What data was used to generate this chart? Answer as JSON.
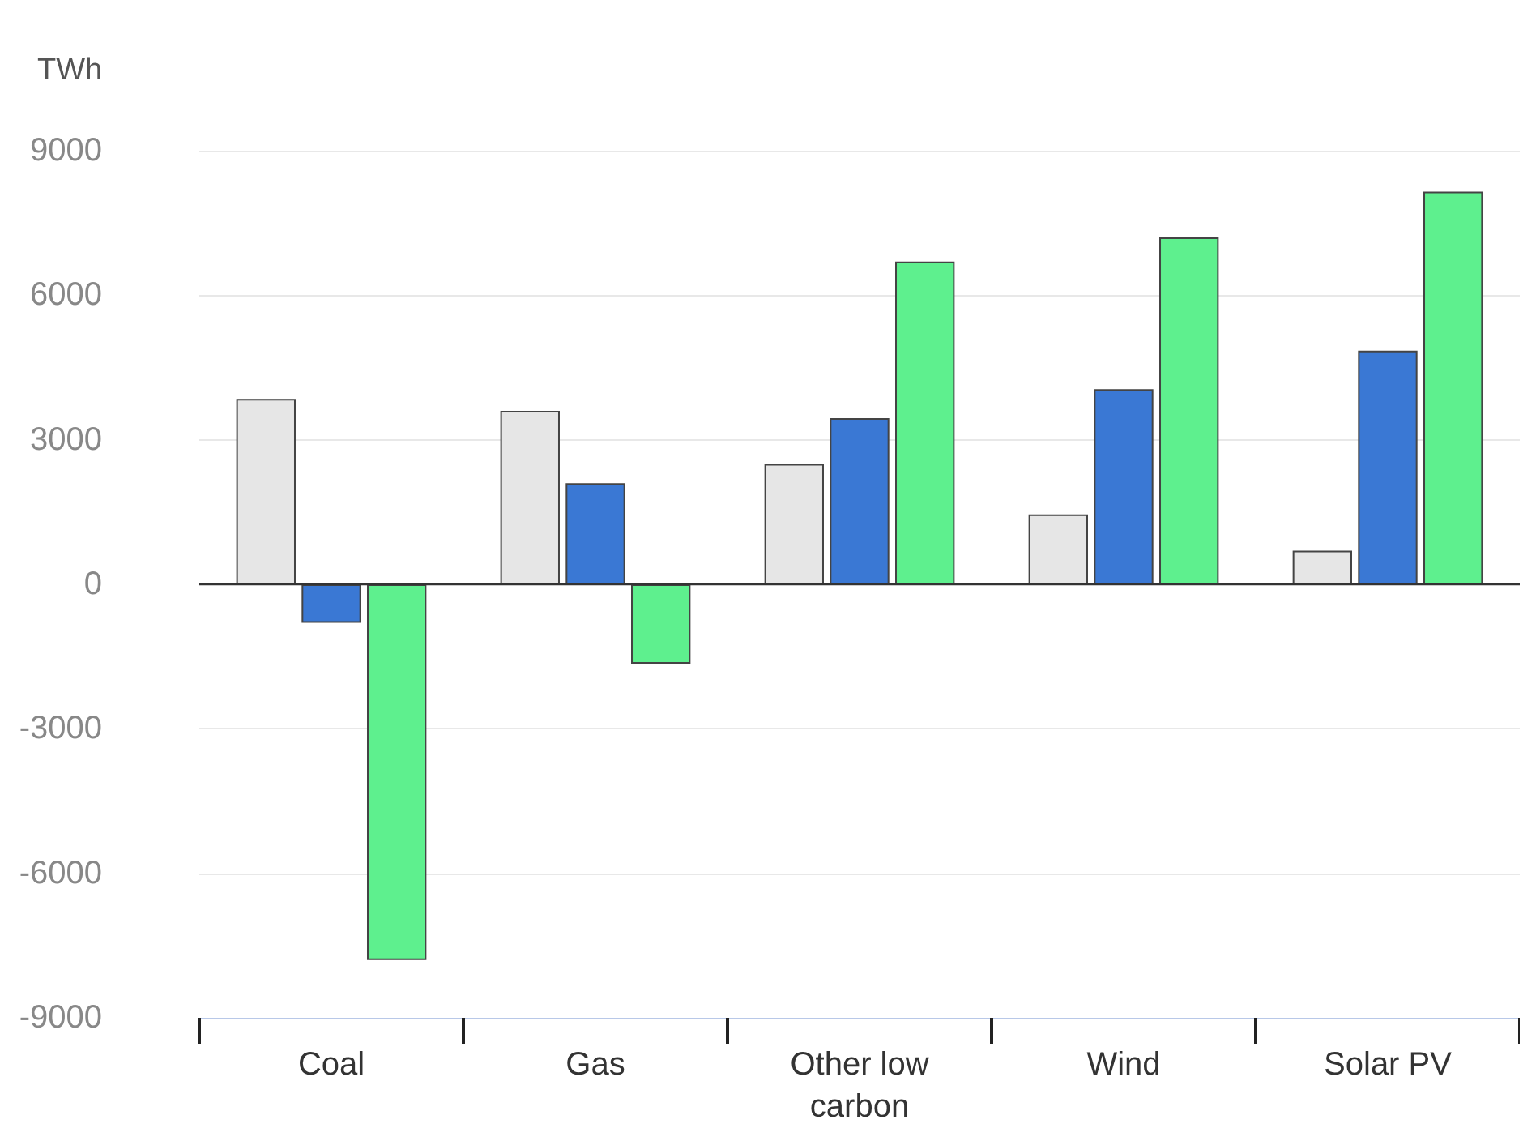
{
  "chart_data": {
    "type": "bar",
    "ylabel": "TWh",
    "categories": [
      "Coal",
      "Gas",
      "Other low carbon",
      "Wind",
      "Solar PV"
    ],
    "series": [
      {
        "color": "#e6e6e6",
        "values": [
          3850,
          3600,
          2500,
          1450,
          700
        ]
      },
      {
        "color": "#3a78d4",
        "values": [
          -800,
          2100,
          3450,
          4050,
          4850
        ]
      },
      {
        "color": "#5ef08e",
        "values": [
          -7800,
          -1650,
          6700,
          7200,
          8150
        ]
      }
    ],
    "ylim": [
      -9000,
      9000
    ],
    "yticks": [
      -9000,
      -6000,
      -3000,
      0,
      3000,
      6000,
      9000
    ],
    "grid": "y",
    "ref_lines": [
      {
        "axis": "y",
        "value": 0,
        "color": "#333333"
      }
    ]
  }
}
